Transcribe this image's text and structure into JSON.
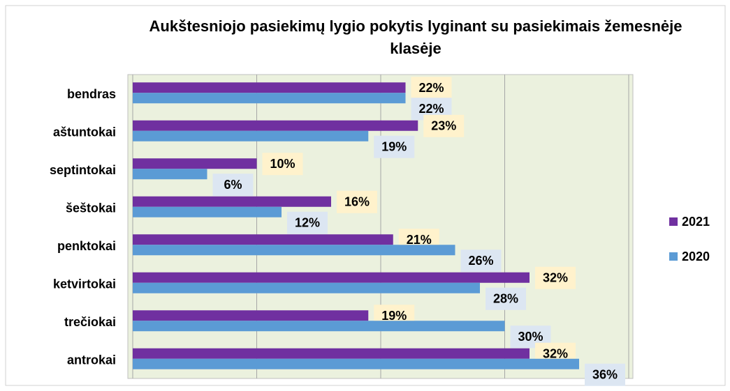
{
  "chart_data": {
    "type": "bar",
    "orientation": "horizontal",
    "title": "Aukštesniojo pasiekimų lygio pokytis lyginant su pasiekimais žemesnėje klasėje",
    "categories": [
      "bendras",
      "aštuntokai",
      "septintokai",
      "šeštokai",
      "penktokai",
      "ketvirtokai",
      "trečiokai",
      "antrokai"
    ],
    "series": [
      {
        "name": "2021",
        "color": "#7030a0",
        "values": [
          22,
          23,
          10,
          16,
          21,
          32,
          19,
          32
        ],
        "value_labels": [
          "22%",
          "23%",
          "10%",
          "16%",
          "21%",
          "32%",
          "19%",
          "32%"
        ]
      },
      {
        "name": "2020",
        "color": "#5b9bd5",
        "values": [
          22,
          19,
          6,
          12,
          26,
          28,
          30,
          36
        ],
        "value_labels": [
          "22%",
          "19%",
          "6%",
          "12%",
          "26%",
          "28%",
          "30%",
          "36%"
        ]
      }
    ],
    "xlim": [
      0,
      40
    ],
    "xticks": [
      0,
      10,
      20,
      30,
      40
    ],
    "grid": true,
    "legend": "right"
  }
}
